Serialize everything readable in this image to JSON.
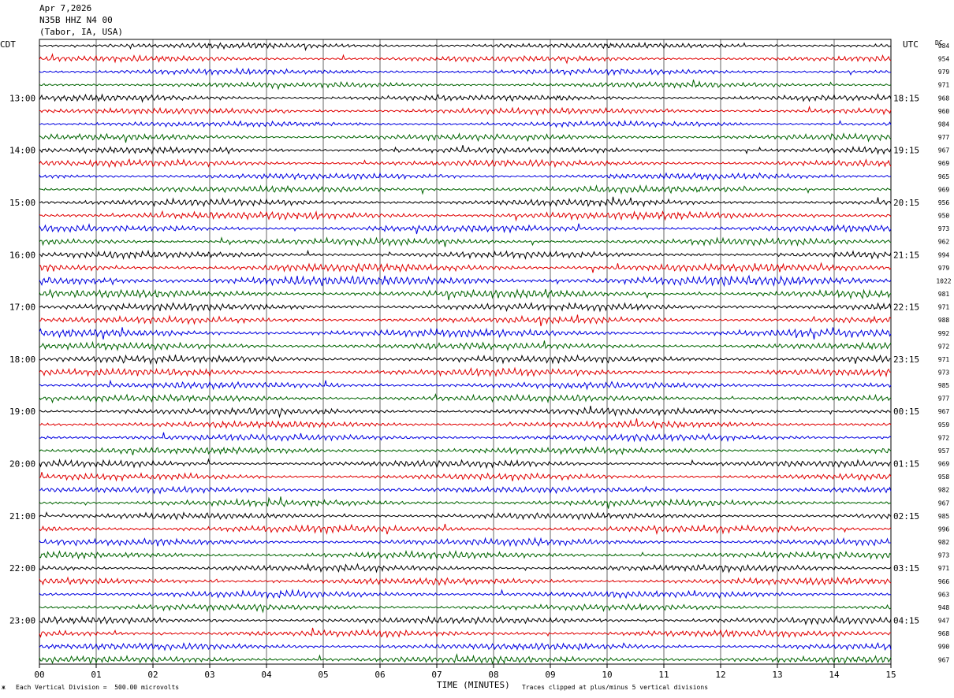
{
  "header": {
    "date": "Apr 7,2026",
    "station": "N35B HHZ N4 00",
    "location": "(Tabor, IA, USA)"
  },
  "labels": {
    "left_zone": "CDT",
    "right_zone": "UTC",
    "dc_label": "DC"
  },
  "footer": {
    "scale_note": "Each Vertical Division =  500.00 microvolts",
    "xlabel": "TIME (MINUTES)",
    "clip_note": "Traces clipped at plus/minus 5 vertical divisions"
  },
  "colors": {
    "trace_cycle": [
      "#000000",
      "#e00000",
      "#0000e0",
      "#006400"
    ],
    "grid": "#000000",
    "background": "#ffffff"
  },
  "chart_data": {
    "type": "line",
    "title": "N35B HHZ N4 00",
    "xlabel": "TIME (MINUTES)",
    "xlim": [
      0,
      15
    ],
    "x_ticks": [
      "00",
      "01",
      "02",
      "03",
      "04",
      "05",
      "06",
      "07",
      "08",
      "09",
      "10",
      "11",
      "12",
      "13",
      "14",
      "15"
    ],
    "left_hour_labels": [
      "13:00",
      "14:00",
      "15:00",
      "16:00",
      "17:00",
      "18:00",
      "19:00",
      "20:00",
      "21:00",
      "22:00",
      "23:00"
    ],
    "right_hour_labels": [
      "18:15",
      "19:15",
      "20:15",
      "21:15",
      "22:15",
      "23:15",
      "00:15",
      "01:15",
      "02:15",
      "03:15",
      "04:15"
    ],
    "rows": 48,
    "dc_offsets": [
      984,
      954,
      979,
      971,
      968,
      960,
      984,
      977,
      967,
      969,
      965,
      969,
      956,
      950,
      973,
      962,
      994,
      979,
      1022,
      981,
      971,
      988,
      992,
      972,
      971,
      973,
      985,
      977,
      967,
      959,
      972,
      957,
      969,
      958,
      982,
      967,
      985,
      996,
      982,
      973,
      971,
      966,
      963,
      948,
      947,
      968,
      990,
      967
    ],
    "row_amplitude": [
      0.5,
      0.5,
      0.5,
      0.5,
      0.55,
      0.55,
      0.5,
      0.55,
      0.55,
      0.6,
      0.55,
      0.6,
      0.6,
      0.7,
      0.6,
      0.6,
      0.6,
      0.75,
      0.9,
      0.7,
      0.65,
      0.6,
      0.7,
      0.6,
      0.65,
      0.65,
      0.6,
      0.6,
      0.6,
      0.6,
      0.6,
      0.6,
      0.6,
      0.55,
      0.55,
      0.6,
      0.55,
      0.65,
      0.6,
      0.6,
      0.6,
      0.6,
      0.6,
      0.55,
      0.6,
      0.6,
      0.6,
      0.6
    ],
    "grid": true,
    "scale_microvolts_per_division": 500.0,
    "clip_divisions": 5
  }
}
